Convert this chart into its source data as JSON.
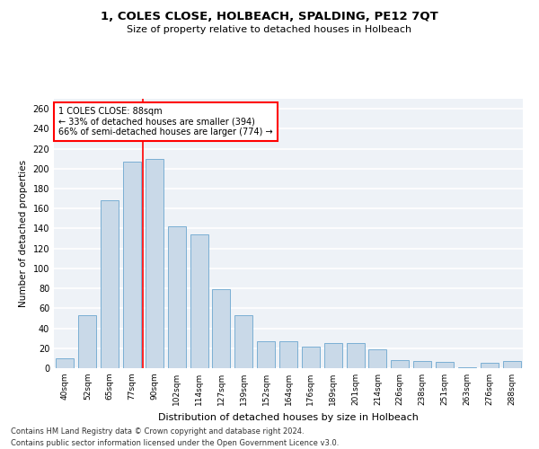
{
  "title": "1, COLES CLOSE, HOLBEACH, SPALDING, PE12 7QT",
  "subtitle": "Size of property relative to detached houses in Holbeach",
  "xlabel": "Distribution of detached houses by size in Holbeach",
  "ylabel": "Number of detached properties",
  "categories": [
    "40sqm",
    "52sqm",
    "65sqm",
    "77sqm",
    "90sqm",
    "102sqm",
    "114sqm",
    "127sqm",
    "139sqm",
    "152sqm",
    "164sqm",
    "176sqm",
    "189sqm",
    "201sqm",
    "214sqm",
    "226sqm",
    "238sqm",
    "251sqm",
    "263sqm",
    "276sqm",
    "288sqm"
  ],
  "values": [
    10,
    53,
    168,
    207,
    210,
    142,
    134,
    79,
    53,
    27,
    27,
    22,
    25,
    25,
    19,
    8,
    7,
    6,
    1,
    5,
    7
  ],
  "bar_color": "#c9d9e8",
  "bar_edge_color": "#7bafd4",
  "annotation_text": "1 COLES CLOSE: 88sqm\n← 33% of detached houses are smaller (394)\n66% of semi-detached houses are larger (774) →",
  "annotation_box_color": "white",
  "annotation_box_edge_color": "red",
  "property_line_color": "red",
  "ylim": [
    0,
    270
  ],
  "yticks": [
    0,
    20,
    40,
    60,
    80,
    100,
    120,
    140,
    160,
    180,
    200,
    220,
    240,
    260
  ],
  "background_color": "#eef2f7",
  "grid_color": "white",
  "footer_line1": "Contains HM Land Registry data © Crown copyright and database right 2024.",
  "footer_line2": "Contains public sector information licensed under the Open Government Licence v3.0."
}
